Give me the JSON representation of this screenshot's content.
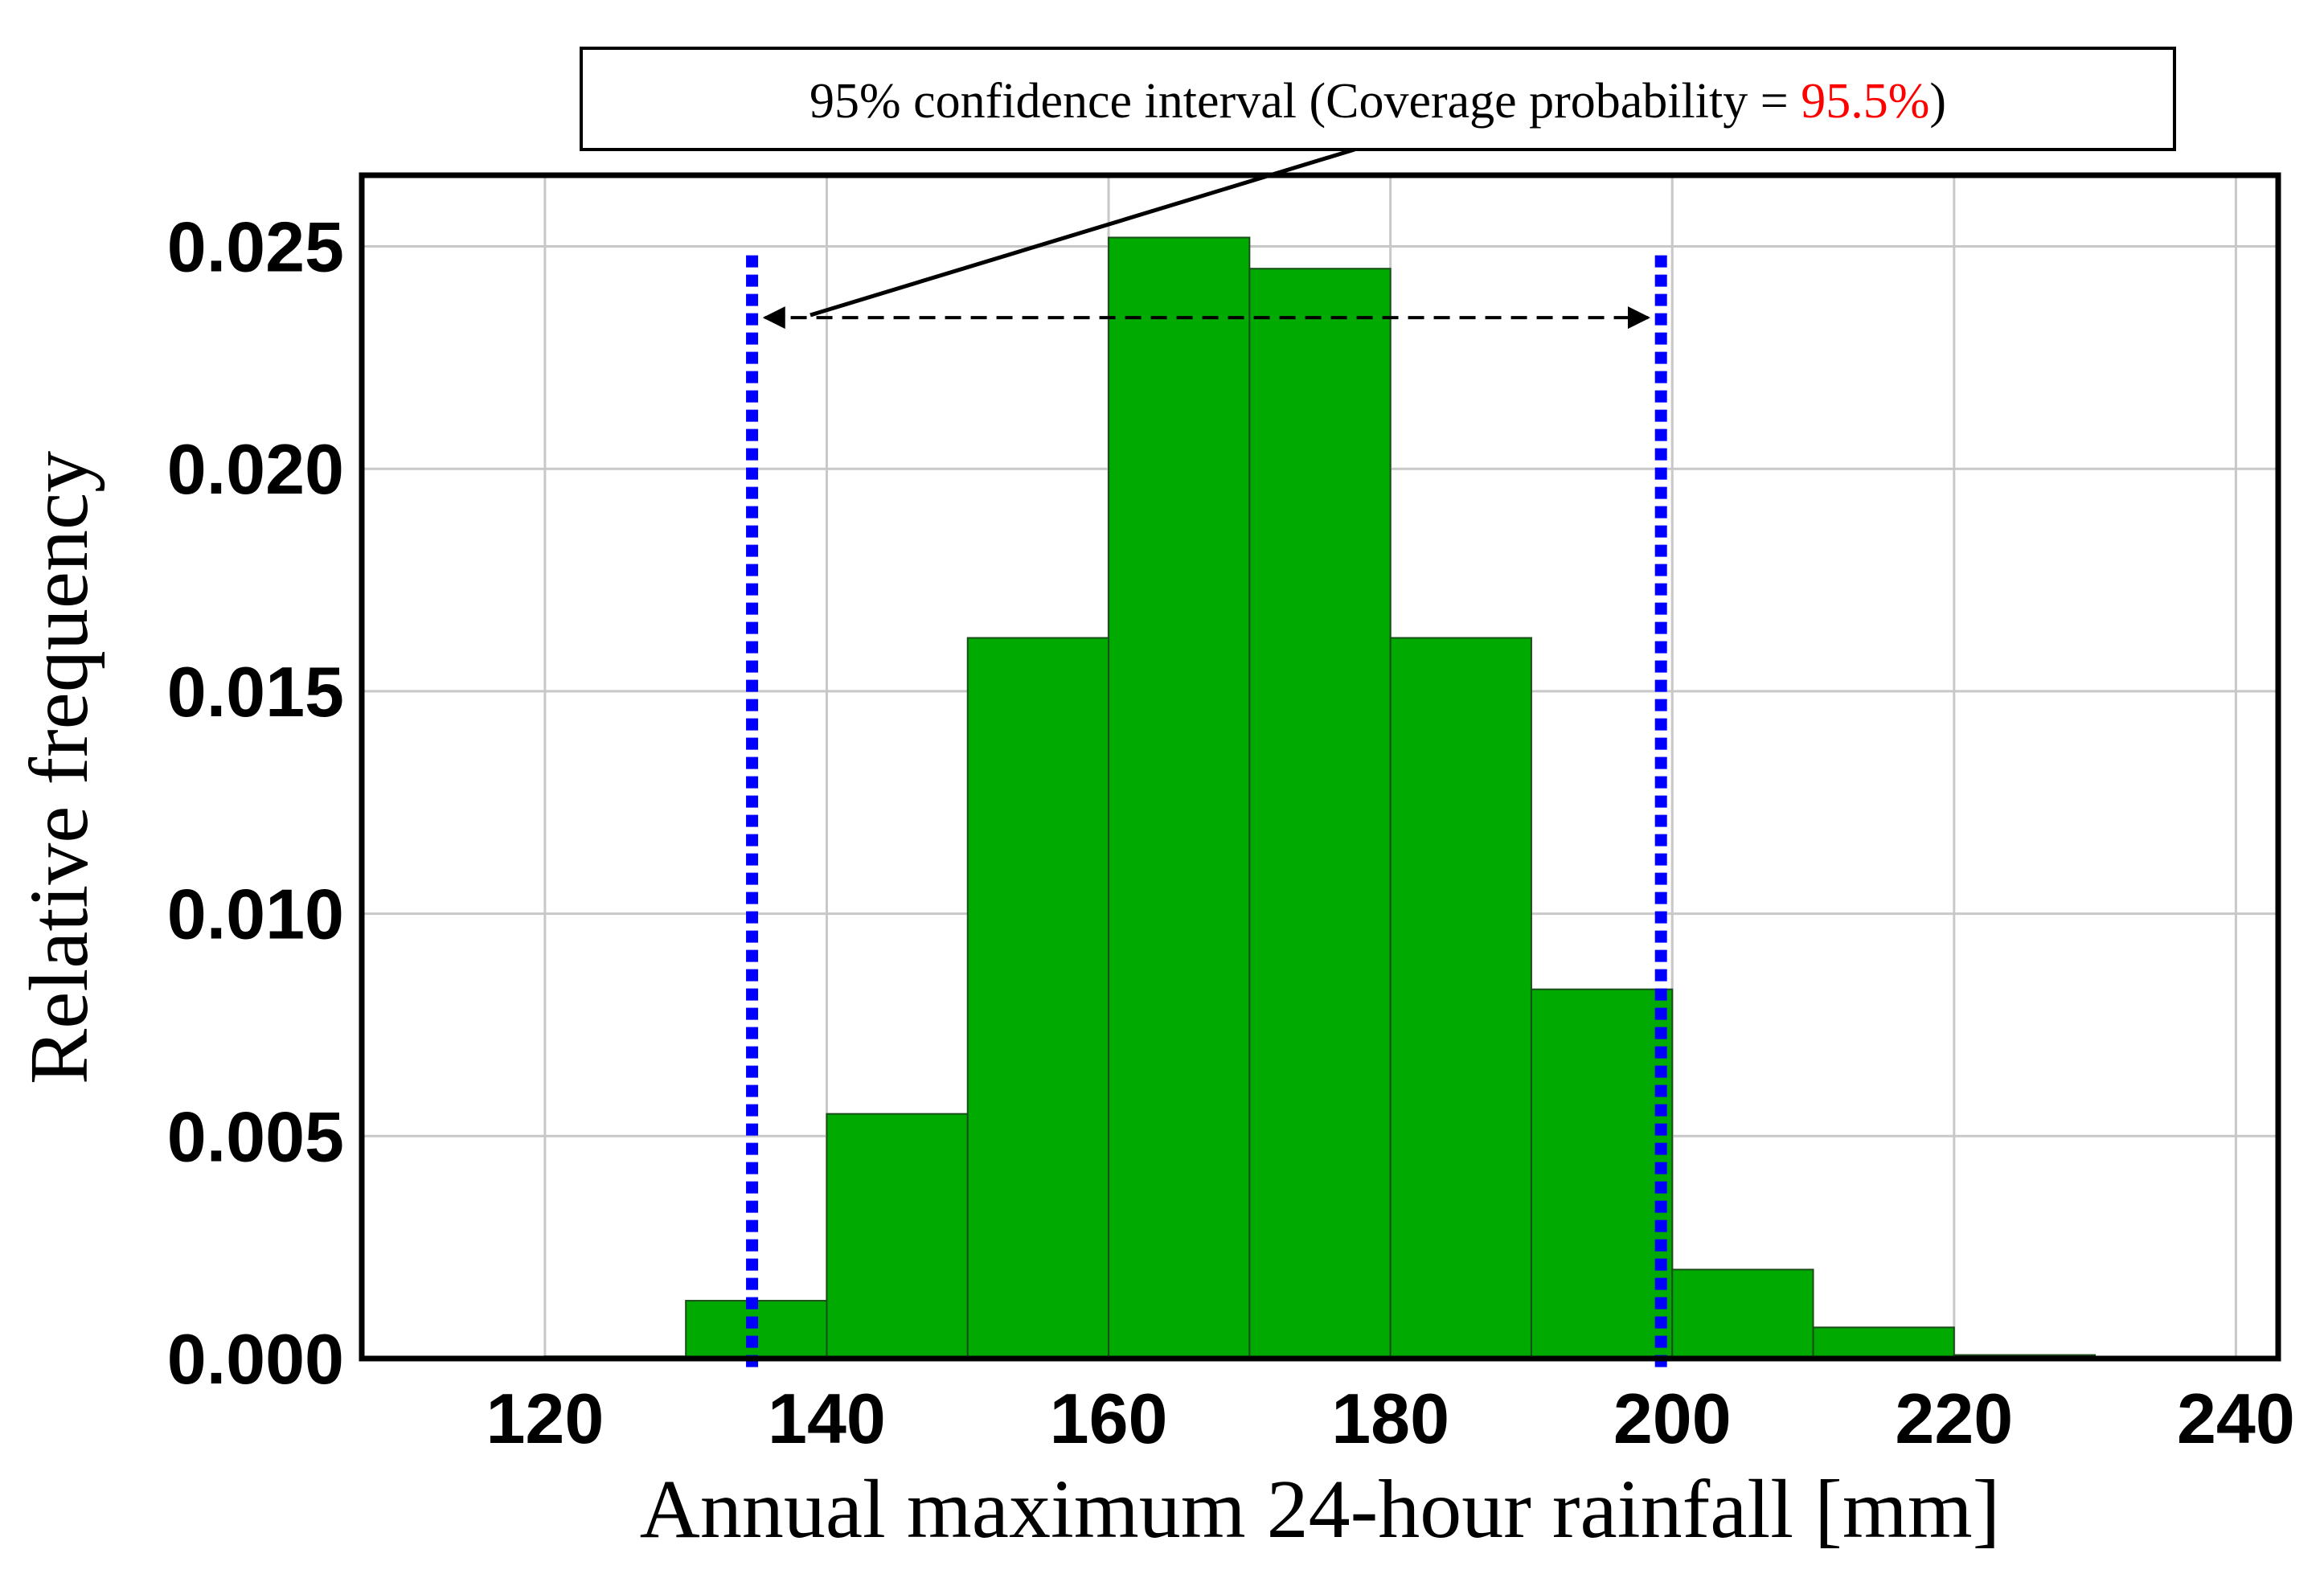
{
  "chart_data": {
    "type": "bar",
    "subtype": "histogram",
    "title": "",
    "xlabel": "Annual maximum 24-hour rainfall [mm]",
    "ylabel": "Relative frequency",
    "xlim": [
      107,
      243
    ],
    "ylim": [
      0,
      0.0266
    ],
    "xticks": [
      120,
      140,
      160,
      180,
      200,
      220,
      240
    ],
    "xtick_labels": [
      "120",
      "140",
      "160",
      "180",
      "200",
      "220",
      "240"
    ],
    "yticks": [
      0.0,
      0.005,
      0.01,
      0.015,
      0.02,
      0.025
    ],
    "ytick_labels": [
      "0.000",
      "0.005",
      "0.010",
      "0.015",
      "0.020",
      "0.025"
    ],
    "grid": true,
    "bins": [
      {
        "from": 120,
        "to": 130,
        "value": 5e-05
      },
      {
        "from": 130,
        "to": 140,
        "value": 0.0013
      },
      {
        "from": 140,
        "to": 150,
        "value": 0.0055
      },
      {
        "from": 150,
        "to": 160,
        "value": 0.0162
      },
      {
        "from": 160,
        "to": 170,
        "value": 0.0252
      },
      {
        "from": 170,
        "to": 180,
        "value": 0.0245
      },
      {
        "from": 180,
        "to": 190,
        "value": 0.0162
      },
      {
        "from": 190,
        "to": 200,
        "value": 0.0083
      },
      {
        "from": 200,
        "to": 210,
        "value": 0.002
      },
      {
        "from": 210,
        "to": 220,
        "value": 0.0007
      },
      {
        "from": 220,
        "to": 230,
        "value": 8e-05
      }
    ],
    "interval": {
      "lower": 134.7,
      "upper": 199.2,
      "arrow_y": 0.0234
    },
    "annotation": {
      "text": "95% confidence interval (Coverage probability = ",
      "highlight": "95.5%",
      "suffix": ")"
    },
    "colors": {
      "bar": "#00aa00",
      "bar_edge": "#1a4d1a",
      "interval_line": "#0000ff",
      "grid": "#c8c8c8",
      "highlight": "#ff0000"
    }
  }
}
